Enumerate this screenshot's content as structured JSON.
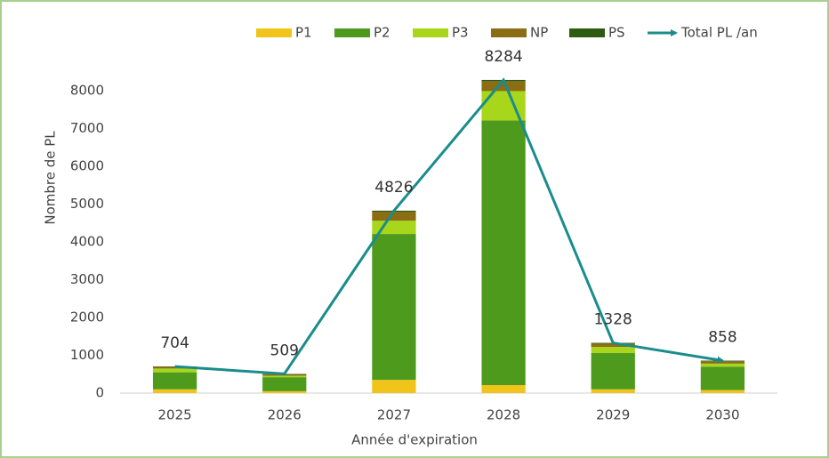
{
  "chart_data": {
    "type": "bar",
    "x_label": "Année d'expiration",
    "y_label": "Nombre de PL",
    "categories": [
      "2025",
      "2026",
      "2027",
      "2028",
      "2029",
      "2030"
    ],
    "stacked": true,
    "series": [
      {
        "name": "P1",
        "color": "#f0c419",
        "values": [
          100,
          50,
          350,
          210,
          100,
          80
        ]
      },
      {
        "name": "P2",
        "color": "#4e9a1c",
        "values": [
          450,
          370,
          3860,
          7005,
          958,
          620
        ]
      },
      {
        "name": "P3",
        "color": "#a8d61b",
        "values": [
          100,
          40,
          350,
          775,
          164,
          80
        ]
      },
      {
        "name": "NP",
        "color": "#8b6d14",
        "values": [
          44,
          39,
          240,
          260,
          86,
          60
        ]
      },
      {
        "name": "PS",
        "color": "#2e5b12",
        "values": [
          10,
          10,
          26,
          34,
          20,
          18
        ]
      },
      {
        "name": "Total PL /an",
        "color": "#1a8c8c",
        "kind": "line",
        "values": [
          704,
          509,
          4826,
          8284,
          1328,
          858
        ]
      }
    ],
    "ylim": [
      0,
      9000
    ],
    "yticks": [
      0,
      1000,
      2000,
      3000,
      4000,
      5000,
      6000,
      7000,
      8000
    ],
    "grid": false,
    "legend": "top"
  }
}
